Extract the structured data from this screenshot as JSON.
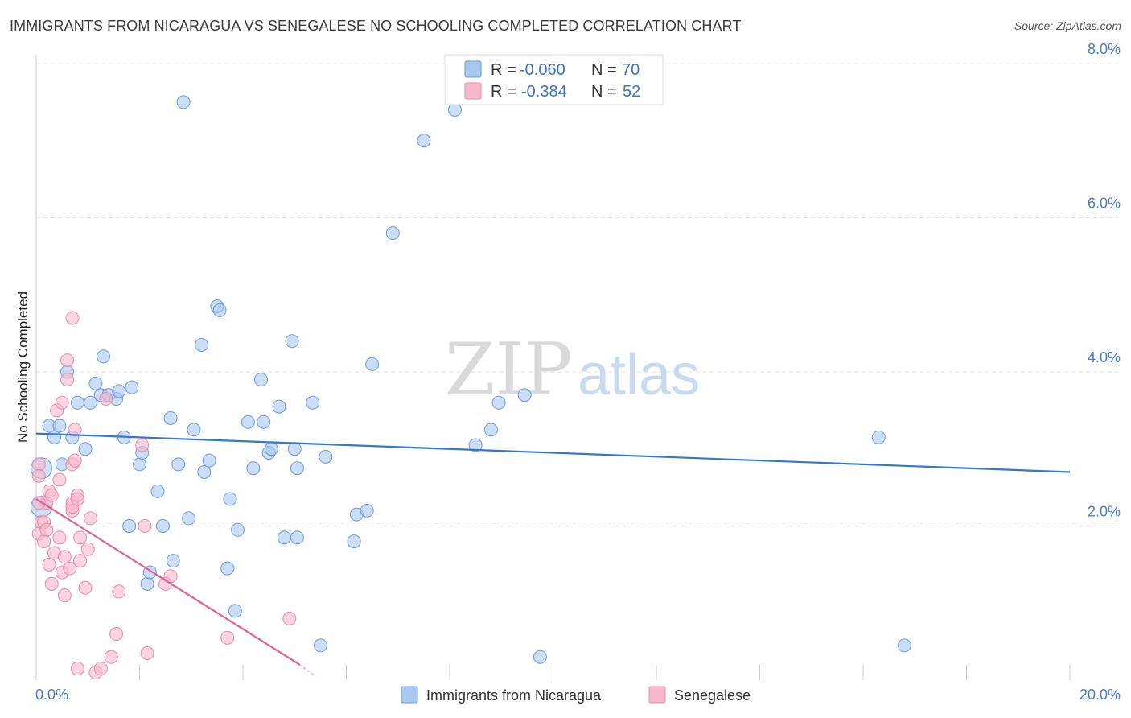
{
  "header": {
    "title": "IMMIGRANTS FROM NICARAGUA VS SENEGALESE NO SCHOOLING COMPLETED CORRELATION CHART",
    "source": "Source: ZipAtlas.com"
  },
  "watermark": {
    "zip": "ZIP",
    "atlas": "atlas"
  },
  "legend": {
    "rows": [
      {
        "r_label": "R =",
        "r_value": "-0.060",
        "n_label": "N =",
        "n_value": "70",
        "color": "#a8c8f0",
        "stroke": "#6b9bd8"
      },
      {
        "r_label": "R =",
        "r_value": "-0.384",
        "n_label": "N =",
        "n_value": "52",
        "color": "#f7b8cc",
        "stroke": "#e88aa8"
      }
    ]
  },
  "bottom_legend": {
    "items": [
      {
        "label": "Immigrants from Nicaragua",
        "color": "#a8c8f0",
        "stroke": "#6b9bd8"
      },
      {
        "label": "Senegalese",
        "color": "#f7b8cc",
        "stroke": "#e88aa8"
      }
    ]
  },
  "chart_data": {
    "type": "scatter",
    "title": "IMMIGRANTS FROM NICARAGUA VS SENEGALESE NO SCHOOLING COMPLETED CORRELATION CHART",
    "xlabel": "",
    "ylabel": "No Schooling Completed",
    "xlim": [
      0,
      20
    ],
    "ylim": [
      0,
      8
    ],
    "x_tick_labels": [
      "0.0%",
      "20.0%"
    ],
    "y_ticks": [
      2,
      4,
      6,
      8
    ],
    "y_tick_labels": [
      "2.0%",
      "4.0%",
      "6.0%",
      "8.0%"
    ],
    "grid": true,
    "legend_position": "top-center",
    "series": [
      {
        "name": "Immigrants from Nicaragua",
        "color": "#6b9bd8",
        "fill": "#a8c8f0",
        "trend": {
          "x": [
            0,
            20
          ],
          "y": [
            3.2,
            2.7
          ]
        },
        "points": [
          [
            0.1,
            2.75
          ],
          [
            0.1,
            2.25
          ],
          [
            0.25,
            3.3
          ],
          [
            0.35,
            3.15
          ],
          [
            0.45,
            3.3
          ],
          [
            0.5,
            2.8
          ],
          [
            0.6,
            4.0
          ],
          [
            0.7,
            3.15
          ],
          [
            0.8,
            3.6
          ],
          [
            0.95,
            3.0
          ],
          [
            1.05,
            3.6
          ],
          [
            1.15,
            3.85
          ],
          [
            1.25,
            3.7
          ],
          [
            1.3,
            4.2
          ],
          [
            1.4,
            3.7
          ],
          [
            1.55,
            3.65
          ],
          [
            1.6,
            3.75
          ],
          [
            1.7,
            3.15
          ],
          [
            1.8,
            2.0
          ],
          [
            1.85,
            3.8
          ],
          [
            2.0,
            2.8
          ],
          [
            2.05,
            2.95
          ],
          [
            2.15,
            1.25
          ],
          [
            2.2,
            1.4
          ],
          [
            2.35,
            2.45
          ],
          [
            2.45,
            2.0
          ],
          [
            2.6,
            3.4
          ],
          [
            2.65,
            1.55
          ],
          [
            2.75,
            2.8
          ],
          [
            2.95,
            2.1
          ],
          [
            2.85,
            7.5
          ],
          [
            3.05,
            3.25
          ],
          [
            3.2,
            4.35
          ],
          [
            3.25,
            2.7
          ],
          [
            3.35,
            2.85
          ],
          [
            3.5,
            4.85
          ],
          [
            3.55,
            4.8
          ],
          [
            3.7,
            1.45
          ],
          [
            3.75,
            2.35
          ],
          [
            3.85,
            0.9
          ],
          [
            3.9,
            1.95
          ],
          [
            4.1,
            3.35
          ],
          [
            4.2,
            2.75
          ],
          [
            4.35,
            3.9
          ],
          [
            4.4,
            3.35
          ],
          [
            4.5,
            2.95
          ],
          [
            4.55,
            3.0
          ],
          [
            4.7,
            3.55
          ],
          [
            4.8,
            1.85
          ],
          [
            4.95,
            4.4
          ],
          [
            5.0,
            3.0
          ],
          [
            5.05,
            1.85
          ],
          [
            5.05,
            2.75
          ],
          [
            5.35,
            3.6
          ],
          [
            5.5,
            0.45
          ],
          [
            5.6,
            2.9
          ],
          [
            6.15,
            1.8
          ],
          [
            6.2,
            2.15
          ],
          [
            6.4,
            2.2
          ],
          [
            6.5,
            4.1
          ],
          [
            6.9,
            5.8
          ],
          [
            7.5,
            7.0
          ],
          [
            8.1,
            7.4
          ],
          [
            8.5,
            3.05
          ],
          [
            8.8,
            3.25
          ],
          [
            8.95,
            3.6
          ],
          [
            9.45,
            3.7
          ],
          [
            9.75,
            0.3
          ],
          [
            16.3,
            3.15
          ],
          [
            16.8,
            0.45
          ]
        ]
      },
      {
        "name": "Senegalese",
        "color": "#e88aa8",
        "fill": "#f7b8cc",
        "trend": {
          "x": [
            0,
            5.1
          ],
          "y": [
            2.35,
            0.2
          ]
        },
        "points": [
          [
            0.05,
            2.8
          ],
          [
            0.05,
            1.9
          ],
          [
            0.05,
            2.65
          ],
          [
            0.1,
            2.05
          ],
          [
            0.15,
            2.05
          ],
          [
            0.15,
            1.8
          ],
          [
            0.2,
            1.95
          ],
          [
            0.2,
            2.3
          ],
          [
            0.25,
            1.5
          ],
          [
            0.25,
            2.45
          ],
          [
            0.3,
            2.4
          ],
          [
            0.3,
            1.25
          ],
          [
            0.35,
            1.65
          ],
          [
            0.4,
            3.5
          ],
          [
            0.45,
            2.6
          ],
          [
            0.45,
            1.85
          ],
          [
            0.5,
            3.6
          ],
          [
            0.5,
            1.4
          ],
          [
            0.55,
            1.6
          ],
          [
            0.55,
            1.1
          ],
          [
            0.6,
            3.9
          ],
          [
            0.6,
            4.15
          ],
          [
            0.65,
            1.45
          ],
          [
            0.7,
            2.3
          ],
          [
            0.7,
            2.2
          ],
          [
            0.7,
            2.25
          ],
          [
            0.7,
            2.8
          ],
          [
            0.7,
            4.7
          ],
          [
            0.75,
            2.85
          ],
          [
            0.75,
            3.25
          ],
          [
            0.8,
            2.4
          ],
          [
            0.8,
            2.35
          ],
          [
            0.8,
            0.15
          ],
          [
            0.85,
            1.85
          ],
          [
            0.85,
            1.55
          ],
          [
            0.95,
            1.2
          ],
          [
            1.0,
            1.7
          ],
          [
            1.05,
            2.1
          ],
          [
            1.15,
            0.1
          ],
          [
            1.25,
            0.15
          ],
          [
            1.35,
            3.65
          ],
          [
            1.45,
            0.3
          ],
          [
            1.55,
            0.6
          ],
          [
            1.6,
            1.15
          ],
          [
            2.05,
            3.05
          ],
          [
            2.1,
            2.0
          ],
          [
            2.15,
            0.35
          ],
          [
            2.5,
            1.25
          ],
          [
            2.6,
            1.35
          ],
          [
            3.7,
            0.55
          ],
          [
            4.9,
            0.8
          ],
          [
            0.05,
            2.3
          ]
        ]
      }
    ]
  }
}
